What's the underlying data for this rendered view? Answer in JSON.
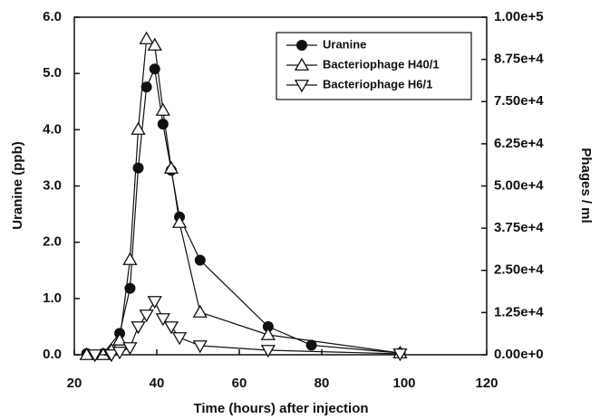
{
  "chart_data": {
    "type": "line",
    "xlabel": "Time (hours) after injection",
    "ylabel": "Uranine (ppb)",
    "y2label": "Phages / ml",
    "xlim": [
      20,
      120
    ],
    "xticks": [
      20,
      40,
      60,
      80,
      100,
      120
    ],
    "ylim": [
      0,
      6
    ],
    "yticks": [
      {
        "value": 0,
        "label": "0.0"
      },
      {
        "value": 1,
        "label": "1.0"
      },
      {
        "value": 2,
        "label": "2.0"
      },
      {
        "value": 3,
        "label": "3.0"
      },
      {
        "value": 4,
        "label": "4.0"
      },
      {
        "value": 5,
        "label": "5.0"
      },
      {
        "value": 6,
        "label": "6.0"
      }
    ],
    "y2lim": [
      0,
      100000
    ],
    "y2ticks": [
      {
        "value": 0,
        "label": "0.00e+0"
      },
      {
        "value": 12500,
        "label": "1.25e+4"
      },
      {
        "value": 25000,
        "label": "2.50e+4"
      },
      {
        "value": 37500,
        "label": "3.75e+4"
      },
      {
        "value": 50000,
        "label": "5.00e+4"
      },
      {
        "value": 62500,
        "label": "6.25e+4"
      },
      {
        "value": 75000,
        "label": "7.50e+4"
      },
      {
        "value": 87500,
        "label": "8.75e+4"
      },
      {
        "value": 100000,
        "label": "1.00e+5"
      }
    ],
    "legend": "upper right",
    "series": [
      {
        "name": "Uranine",
        "color": "#111111",
        "marker": "circle",
        "x": [
          23,
          27,
          31,
          33.5,
          35.5,
          37.5,
          39.5,
          41.5,
          43.5,
          45.5,
          50.5,
          67,
          77.5,
          99
        ],
        "values": [
          0.02,
          0.02,
          0.38,
          1.18,
          3.32,
          4.76,
          5.08,
          4.1,
          3.28,
          2.45,
          1.68,
          0.5,
          0.17,
          0.03
        ]
      },
      {
        "name": "Bacteriophage H40/1",
        "color": "#111111",
        "marker": "triangle-up",
        "axis": "y2",
        "x": [
          23,
          27,
          29,
          31,
          33.5,
          35.5,
          37.5,
          39.5,
          41.5,
          43.5,
          45.5,
          50.5,
          67,
          99
        ],
        "values": [
          0,
          0,
          1300,
          4300,
          28150,
          66760,
          93570,
          91690,
          72390,
          55230,
          39140,
          12600,
          5900,
          500
        ]
      },
      {
        "name": "Bacteriophage H6/1",
        "color": "#111111",
        "marker": "triangle-down",
        "axis": "y2",
        "x": [
          25,
          29,
          31,
          33.5,
          35.5,
          37.5,
          39.5,
          41.5,
          43.5,
          45.5,
          50.5,
          67,
          99
        ],
        "values": [
          0,
          0,
          800,
          2140,
          8310,
          11800,
          15820,
          10720,
          8310,
          5090,
          2680,
          1340,
          270
        ]
      }
    ]
  }
}
